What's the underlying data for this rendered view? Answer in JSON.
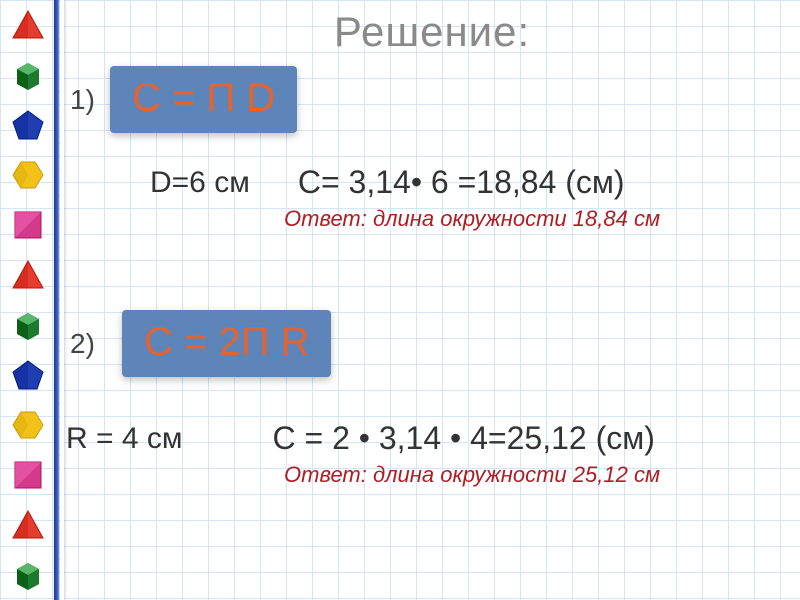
{
  "title": "Решение:",
  "sidebar": {
    "shapes": [
      {
        "type": "triangle",
        "fill": "#e43c2e"
      },
      {
        "type": "cube",
        "fill": "#1c7a2f"
      },
      {
        "type": "pentagon",
        "fill": "#1f3fb0"
      },
      {
        "type": "hexagon",
        "fill": "#f2c21a"
      },
      {
        "type": "square",
        "fill": "#d43a8a"
      },
      {
        "type": "triangle",
        "fill": "#e43c2e"
      },
      {
        "type": "cube",
        "fill": "#1c7a2f"
      },
      {
        "type": "pentagon",
        "fill": "#1f3fb0"
      },
      {
        "type": "hexagon",
        "fill": "#f2c21a"
      },
      {
        "type": "square",
        "fill": "#d43a8a"
      },
      {
        "type": "triangle",
        "fill": "#e43c2e"
      },
      {
        "type": "cube",
        "fill": "#1c7a2f"
      }
    ]
  },
  "formula1": {
    "num": "1)",
    "pill_text": "С = П D",
    "pill_bg": "#5e85ba",
    "given": "D=6 см",
    "calc": "С= 3,14• 6 =18,84 (см)",
    "answer_label": "Ответ: длина окружности",
    "answer_value": "18,84 см"
  },
  "formula2": {
    "num": "2)",
    "pill_text": "С = 2П R",
    "pill_bg": "#5e85ba",
    "given": "R = 4 см",
    "calc": "С = 2 • 3,14 • 4=25,12 (см)",
    "answer_label": "Ответ: длина окружности",
    "answer_value": "25,12 см"
  },
  "colors": {
    "grid": "#d4e6f5",
    "title": "#8a8a8a",
    "formula_text": "#e2632f",
    "answer": "#b01c24"
  }
}
